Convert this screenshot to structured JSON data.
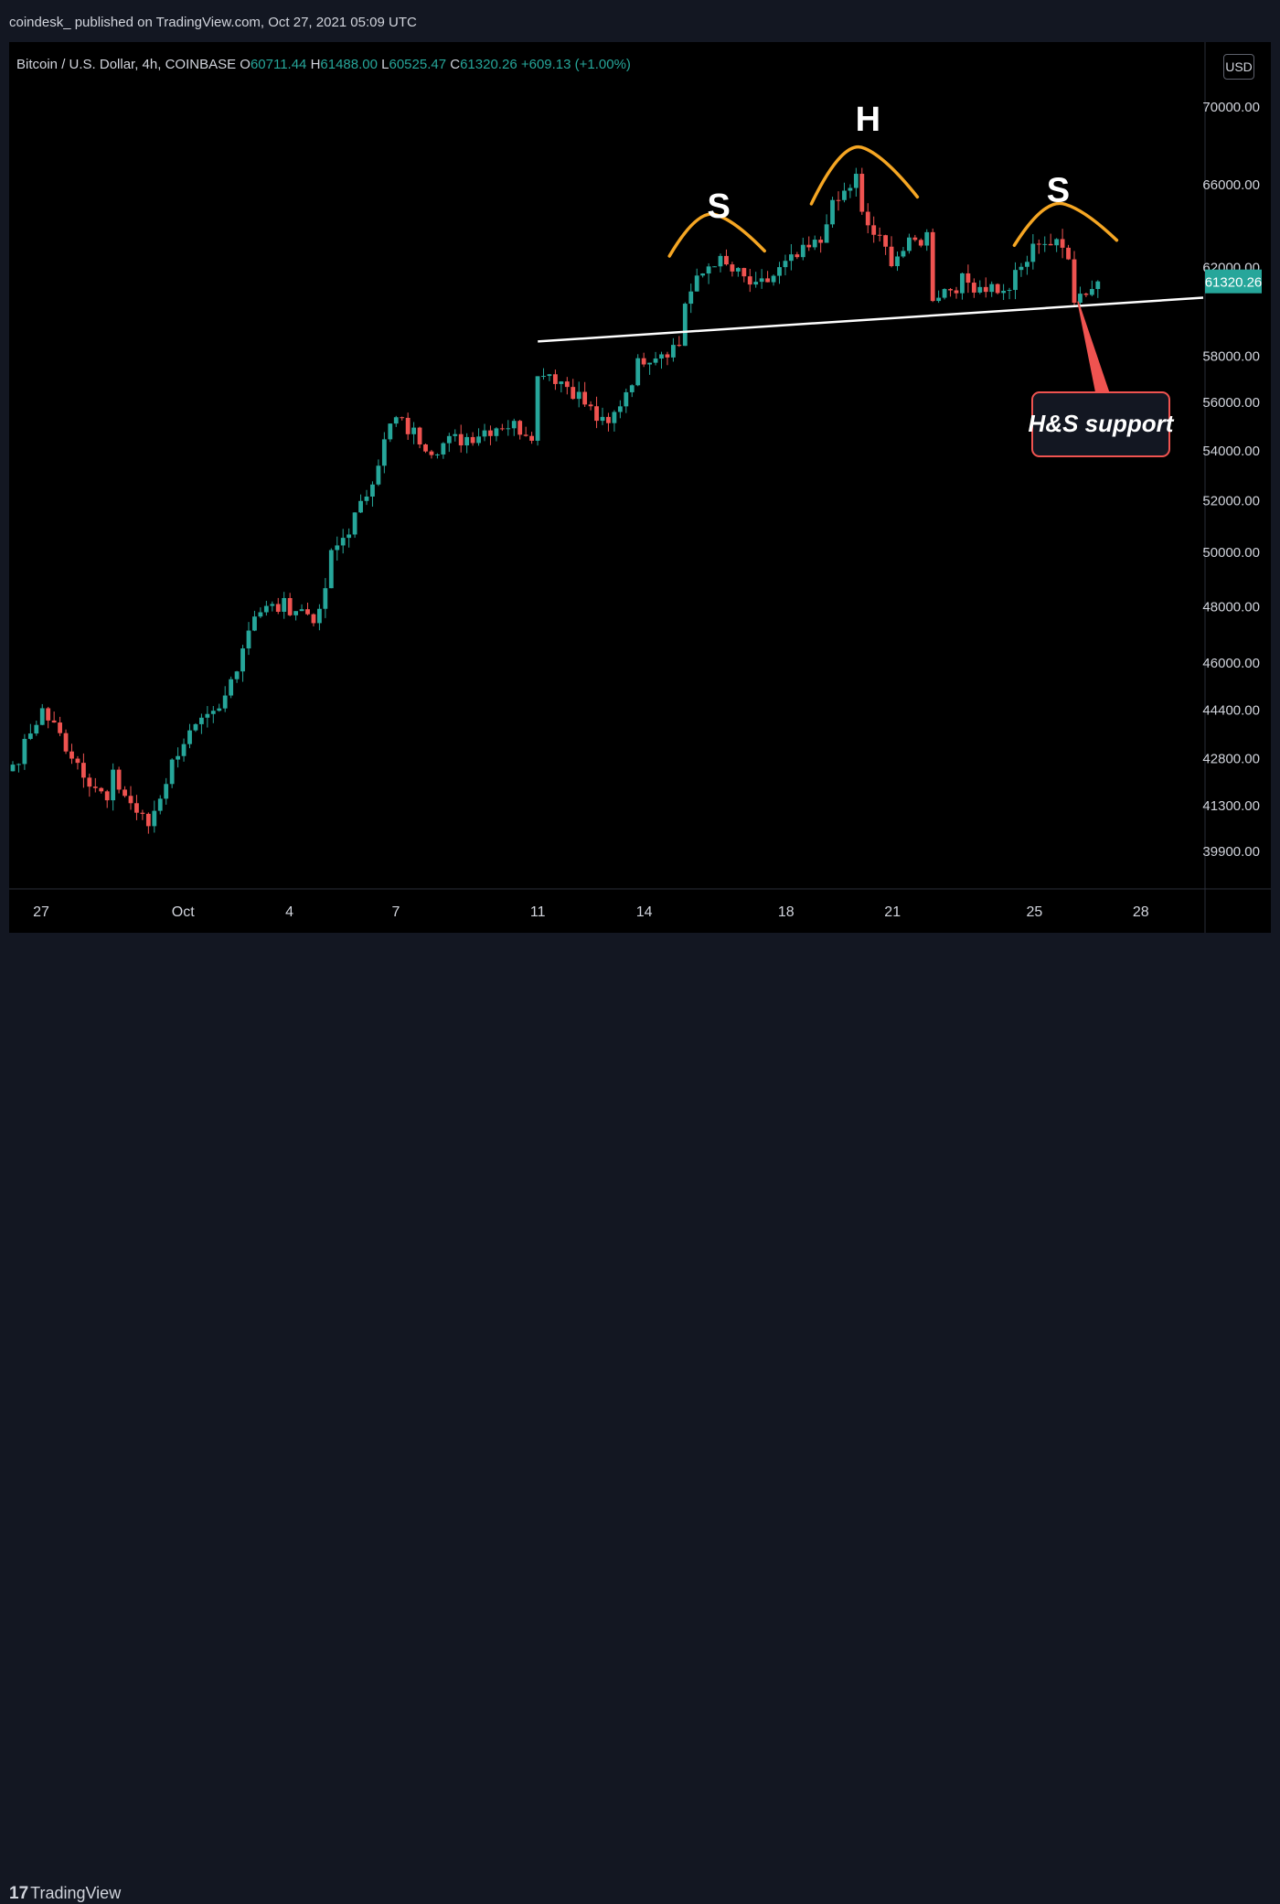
{
  "header": {
    "published_line": "coindesk_ published on TradingView.com, Oct 27, 2021 05:09 UTC"
  },
  "legend": {
    "symbol": "Bitcoin / U.S. Dollar, 4h, COINBASE",
    "open_label": "O",
    "open": "60711.44",
    "high_label": "H",
    "high": "61488.00",
    "low_label": "L",
    "low": "60525.47",
    "close_label": "C",
    "close": "61320.26",
    "change": "+609.13 (+1.00%)"
  },
  "currency_button": "USD",
  "footer": {
    "logo_text": "TradingView"
  },
  "chart_data": {
    "type": "candlestick",
    "x_ticks": [
      "27",
      "Oct",
      "4",
      "7",
      "11",
      "14",
      "18",
      "21",
      "25",
      "28"
    ],
    "y_ticks": [
      {
        "v": 39900,
        "label": "39900.00"
      },
      {
        "v": 41300,
        "label": "41300.00"
      },
      {
        "v": 42800,
        "label": "42800.00"
      },
      {
        "v": 44400,
        "label": "44400.00"
      },
      {
        "v": 46000,
        "label": "46000.00"
      },
      {
        "v": 48000,
        "label": "48000.00"
      },
      {
        "v": 50000,
        "label": "50000.00"
      },
      {
        "v": 52000,
        "label": "52000.00"
      },
      {
        "v": 54000,
        "label": "54000.00"
      },
      {
        "v": 56000,
        "label": "56000.00"
      },
      {
        "v": 58000,
        "label": "58000.00"
      },
      {
        "v": 62000,
        "label": "62000.00"
      },
      {
        "v": 66000,
        "label": "66000.00"
      },
      {
        "v": 70000,
        "label": "70000.00"
      }
    ],
    "y_scale": "log",
    "last_price": {
      "value": 61320.26,
      "label": "61320.26",
      "color": "#26a69a"
    },
    "colors": {
      "up": "#26a69a",
      "down": "#ef5350",
      "pattern": "#f5a623",
      "support_line": "#ffffff",
      "callout_border": "#ef5350"
    },
    "support_line": {
      "from": [
        "Oct 11",
        58600
      ],
      "to": [
        "Oct 28",
        60600
      ]
    },
    "annotations": [
      {
        "text": "S",
        "anchor": "Oct 16",
        "near": 63200
      },
      {
        "text": "H",
        "anchor": "Oct 20",
        "near": 67300
      },
      {
        "text": "S",
        "anchor": "Oct 25",
        "near": 63800
      },
      {
        "text": "H&S support",
        "anchor": "Oct 27",
        "near": 53500
      }
    ],
    "pivots": [
      [
        "Sep 26",
        41800
      ],
      [
        "Sep 27",
        44400
      ],
      [
        "Sep 28",
        42800
      ],
      [
        "Sep 29",
        41200
      ],
      [
        "Sep 29",
        42200
      ],
      [
        "Sep 30",
        40600
      ],
      [
        "Oct 1",
        43300
      ],
      [
        "Oct 2",
        44300
      ],
      [
        "Oct 3",
        47800
      ],
      [
        "Oct 4",
        48000
      ],
      [
        "Oct 5",
        47500
      ],
      [
        "Oct 5",
        49500
      ],
      [
        "Oct 6",
        51700
      ],
      [
        "Oct 7",
        55300
      ],
      [
        "Oct 8",
        54100
      ],
      [
        "Oct 9",
        54500
      ],
      [
        "Oct 10",
        55100
      ],
      [
        "Oct 11",
        54700
      ],
      [
        "Oct 11",
        57600
      ],
      [
        "Oct 12",
        56500
      ],
      [
        "Oct 13",
        54800
      ],
      [
        "Oct 14",
        57900
      ],
      [
        "Oct 15",
        58500
      ],
      [
        "Oct 15",
        60200
      ],
      [
        "Oct 16",
        62400
      ],
      [
        "Oct 17",
        61200
      ],
      [
        "Oct 17",
        60800
      ],
      [
        "Oct 18",
        62000
      ],
      [
        "Oct 19",
        63200
      ],
      [
        "Oct 19",
        64100
      ],
      [
        "Oct 20",
        66400
      ],
      [
        "Oct 20",
        64800
      ],
      [
        "Oct 21",
        62400
      ],
      [
        "Oct 22",
        63600
      ],
      [
        "Oct 22",
        60600
      ],
      [
        "Oct 23",
        61300
      ],
      [
        "Oct 24",
        61000
      ],
      [
        "Oct 24",
        60300
      ],
      [
        "Oct 25",
        62700
      ],
      [
        "Oct 25",
        63400
      ],
      [
        "Oct 26",
        62700
      ],
      [
        "Oct 26",
        60500
      ],
      [
        "Oct 27",
        61320
      ]
    ]
  }
}
